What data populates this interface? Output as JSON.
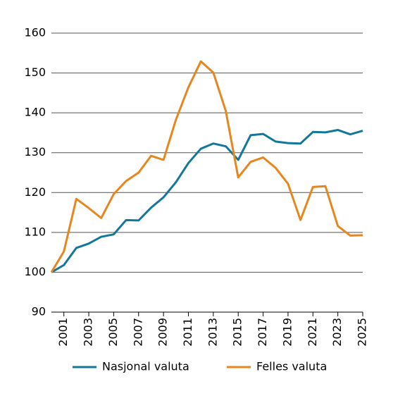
{
  "chart_data": {
    "type": "line",
    "x": [
      2000,
      2001,
      2002,
      2003,
      2004,
      2005,
      2006,
      2007,
      2008,
      2009,
      2010,
      2011,
      2012,
      2013,
      2014,
      2015,
      2016,
      2017,
      2018,
      2019,
      2020,
      2021,
      2022,
      2023,
      2024,
      2025
    ],
    "series": [
      {
        "name": "Nasjonal valuta",
        "color": "#13779b",
        "values": [
          100,
          101.8,
          106.1,
          107.2,
          108.9,
          109.5,
          113.1,
          113.0,
          116.2,
          118.8,
          122.6,
          127.4,
          131.0,
          132.3,
          131.6,
          128.2,
          134.4,
          134.7,
          132.8,
          132.4,
          132.3,
          135.2,
          135.1,
          135.7,
          134.6,
          135.5
        ]
      },
      {
        "name": "Felles valuta",
        "color": "#e8861e",
        "values": [
          100,
          105.2,
          118.4,
          116.1,
          113.6,
          119.6,
          122.9,
          125.0,
          129.2,
          128.2,
          138.3,
          146.4,
          152.9,
          150.1,
          140.5,
          123.8,
          127.7,
          128.8,
          126.2,
          122.2,
          113.1,
          121.4,
          121.6,
          111.6,
          109.2,
          109.3
        ]
      }
    ],
    "xlim": [
      2000,
      2025
    ],
    "xticks": [
      2001,
      2003,
      2005,
      2007,
      2009,
      2011,
      2013,
      2015,
      2017,
      2019,
      2021,
      2023,
      2025
    ],
    "ylim": [
      90,
      160
    ],
    "yticks": [
      90,
      100,
      110,
      120,
      130,
      140,
      150,
      160
    ],
    "grid": true,
    "legend": "bottom"
  }
}
